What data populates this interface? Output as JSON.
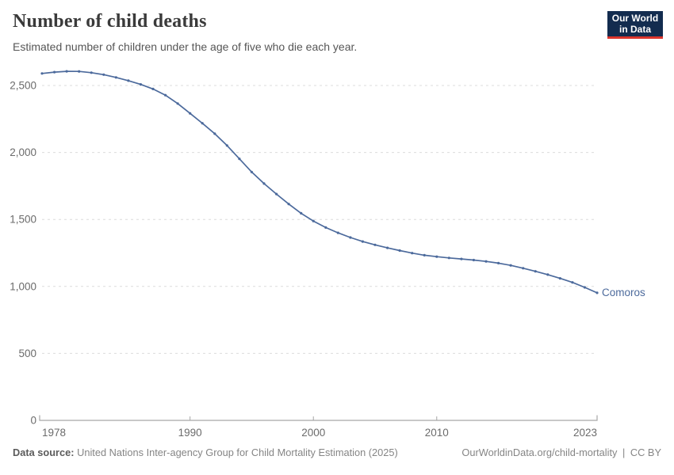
{
  "header": {
    "title": "Number of child deaths",
    "subtitle": "Estimated number of children under the age of five who die each year.",
    "logo": {
      "line1": "Our World",
      "line2": "in Data",
      "bg_color": "#132c4f",
      "accent_color": "#dc352c"
    }
  },
  "chart_data": {
    "type": "line",
    "title": "Number of child deaths",
    "x": [
      1978,
      1979,
      1980,
      1981,
      1982,
      1983,
      1984,
      1985,
      1986,
      1987,
      1988,
      1989,
      1990,
      1991,
      1992,
      1993,
      1994,
      1995,
      1996,
      1997,
      1998,
      1999,
      2000,
      2001,
      2002,
      2003,
      2004,
      2005,
      2006,
      2007,
      2008,
      2009,
      2010,
      2011,
      2012,
      2013,
      2014,
      2015,
      2016,
      2017,
      2018,
      2019,
      2020,
      2021,
      2022,
      2023
    ],
    "series": [
      {
        "name": "Comoros",
        "color": "#4c6a9c",
        "values": [
          2590,
          2600,
          2606,
          2605,
          2596,
          2581,
          2560,
          2536,
          2508,
          2474,
          2428,
          2365,
          2292,
          2218,
          2140,
          2052,
          1953,
          1854,
          1768,
          1690,
          1615,
          1546,
          1488,
          1440,
          1400,
          1365,
          1335,
          1310,
          1288,
          1268,
          1249,
          1233,
          1222,
          1213,
          1205,
          1197,
          1187,
          1174,
          1157,
          1136,
          1113,
          1088,
          1060,
          1030,
          993,
          952
        ]
      }
    ],
    "xlim": [
      1978,
      2023
    ],
    "ylim": [
      0,
      2500
    ],
    "xticks": [
      1978,
      1990,
      2000,
      2010,
      2023
    ],
    "xtick_labels": [
      "1978",
      "1990",
      "2000",
      "2010",
      "2023"
    ],
    "yticks": [
      0,
      500,
      1000,
      1500,
      2000,
      2500
    ],
    "ytick_labels": [
      "0",
      "500",
      "1,000",
      "1,500",
      "2,000",
      "2,500"
    ],
    "grid": "horizontal-dashed",
    "legend_position": "end-of-line-label",
    "colors": {
      "grid": "#dcdcdc",
      "axis": "#a6a6a6",
      "tick_text": "#6b6b6b"
    }
  },
  "footer": {
    "source_label": "Data source:",
    "source_text": " United Nations Inter-agency Group for Child Mortality Estimation (2025)",
    "link_text": "OurWorldinData.org/child-mortality",
    "divider": "|",
    "license_text": "CC BY"
  }
}
